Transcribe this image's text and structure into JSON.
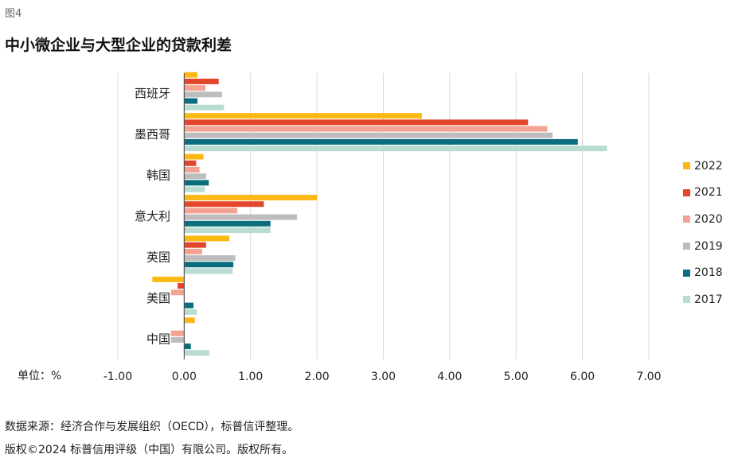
{
  "figure_label": "图4",
  "title": "中小微企业与大型企业的贷款利差",
  "unit_label": "单位：%",
  "source_note": "数据来源：经济合作与发展组织（OECD），标普信评整理。",
  "copyright_note": "版权©2024 标普信用评级（中国）有限公司。版权所有。",
  "chart_data": {
    "type": "bar",
    "orientation": "horizontal",
    "categories": [
      "西班牙",
      "墨西哥",
      "韩国",
      "意大利",
      "英国",
      "美国",
      "中国"
    ],
    "series": [
      {
        "name": "2022",
        "color": "#FDB913",
        "values": [
          0.2,
          3.58,
          0.29,
          2.0,
          0.68,
          -0.48,
          0.16
        ]
      },
      {
        "name": "2021",
        "color": "#E3462C",
        "values": [
          0.52,
          5.18,
          0.18,
          1.2,
          0.33,
          -0.1,
          0.0
        ]
      },
      {
        "name": "2020",
        "color": "#F4A393",
        "values": [
          0.32,
          5.47,
          0.23,
          0.8,
          0.27,
          -0.2,
          -0.2
        ]
      },
      {
        "name": "2019",
        "color": "#BDBDBD",
        "values": [
          0.57,
          5.55,
          0.33,
          1.7,
          0.77,
          0.0,
          -0.2
        ]
      },
      {
        "name": "2018",
        "color": "#0B6E7E",
        "values": [
          0.2,
          5.93,
          0.37,
          1.3,
          0.74,
          0.14,
          0.1
        ]
      },
      {
        "name": "2017",
        "color": "#B9DCD2",
        "values": [
          0.6,
          6.37,
          0.31,
          1.3,
          0.73,
          0.19,
          0.38
        ]
      }
    ],
    "xlim": [
      -1.0,
      7.0
    ],
    "x_ticks": [
      "-1.00",
      "0.00",
      "1.00",
      "2.00",
      "3.00",
      "4.00",
      "5.00",
      "6.00",
      "7.00"
    ],
    "x_tick_values": [
      -1,
      0,
      1,
      2,
      3,
      4,
      5,
      6,
      7
    ],
    "grid": "vertical",
    "legend_position": "right"
  }
}
